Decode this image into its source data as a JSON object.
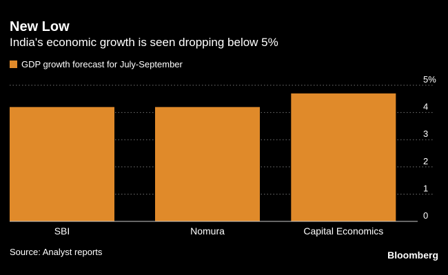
{
  "header": {
    "title": "New Low",
    "subtitle": "India's economic growth is seen dropping below 5%"
  },
  "legend": {
    "label": "GDP growth forecast for July-September"
  },
  "colors": {
    "bar": "#e08a2a",
    "grid": "#777777",
    "text": "#ffffff",
    "background": "#000000"
  },
  "footer": {
    "source": "Source: Analyst reports",
    "brand": "Bloomberg"
  },
  "chart_data": {
    "type": "bar",
    "categories": [
      "SBI",
      "Nomura",
      "Capital Economics"
    ],
    "series": [
      {
        "name": "GDP growth forecast for July-September",
        "values": [
          4.2,
          4.2,
          4.7
        ]
      }
    ],
    "ylim": [
      0,
      5
    ],
    "yticks": [
      0,
      1,
      2,
      3,
      4,
      5
    ],
    "ytick_labels": [
      "0",
      "1",
      "2",
      "3",
      "4",
      "5%"
    ],
    "grid": true,
    "legend_position": "top-left"
  }
}
